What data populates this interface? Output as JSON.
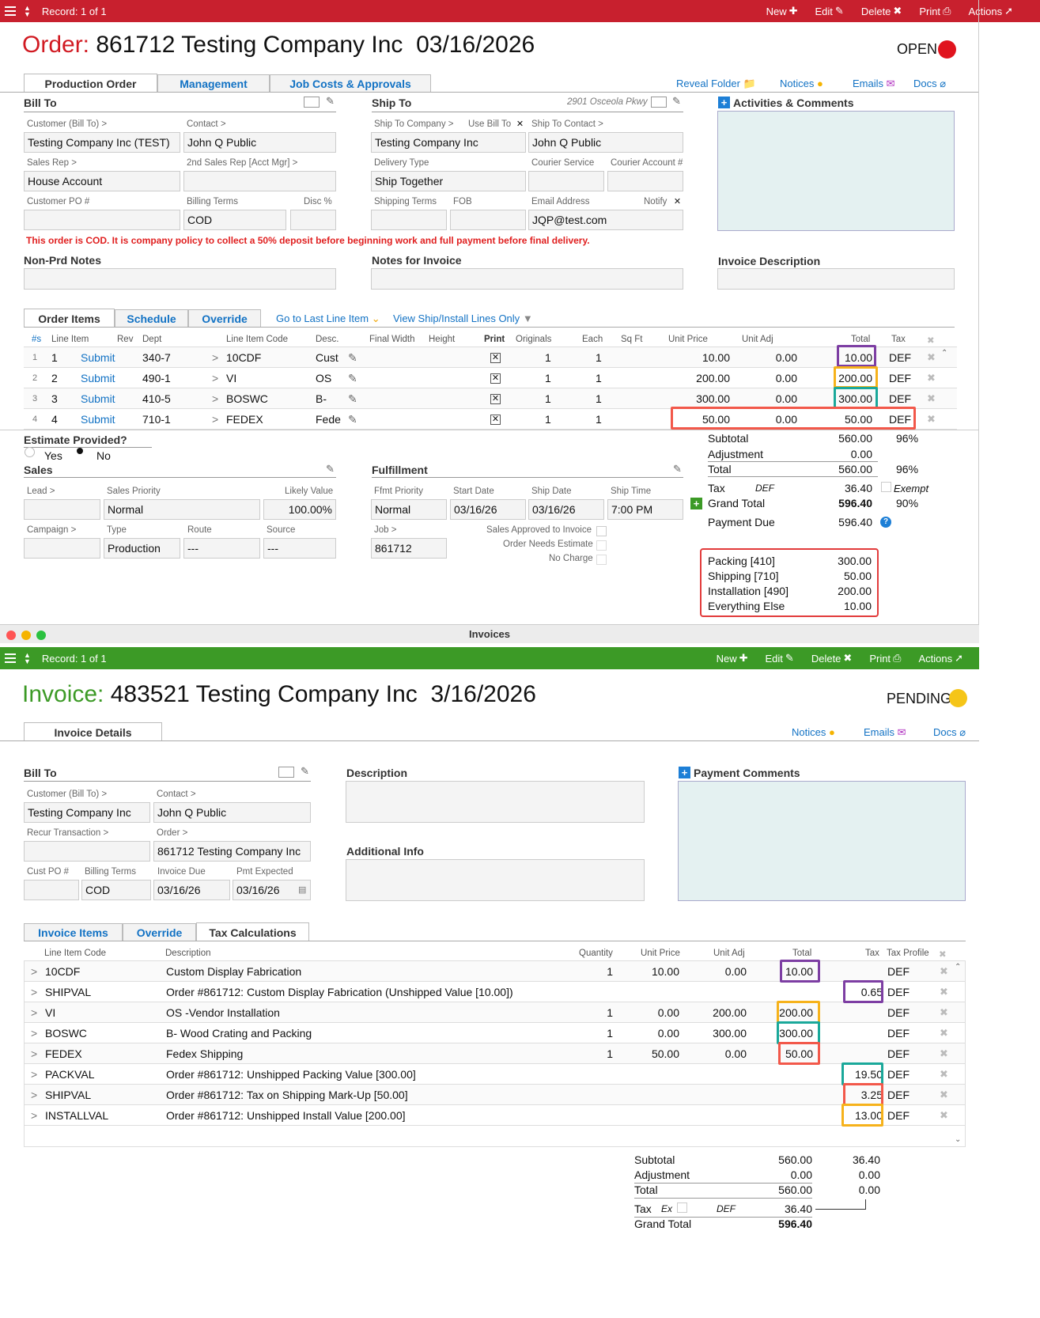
{
  "order_bar": {
    "record": "Record: 1 of 1",
    "new": "New",
    "edit": "Edit",
    "delete": "Delete",
    "print": "Print",
    "actions": "Actions"
  },
  "order": {
    "label": "Order:",
    "title": "861712 Testing Company Inc  03/16/2026",
    "status": "OPEN",
    "status_color": "#e0141e"
  },
  "order_tabs": [
    "Production Order",
    "Management",
    "Job Costs & Approvals"
  ],
  "order_links": {
    "reveal": "Reveal Folder",
    "notices": "Notices",
    "emails": "Emails",
    "docs": "Docs"
  },
  "bill_to": {
    "heading": "Bill To",
    "customer_lbl": "Customer (Bill To) >",
    "customer": "Testing Company Inc  (TEST)",
    "contact_lbl": "Contact >",
    "contact": "John Q Public",
    "sales_rep_lbl": "Sales Rep >",
    "sales_rep": "House Account",
    "sales_rep2_lbl": "2nd Sales Rep [Acct Mgr] >",
    "sales_rep2": "",
    "po_lbl": "Customer PO #",
    "po": "",
    "terms_lbl": "Billing Terms",
    "terms": "COD",
    "disc_lbl": "Disc %",
    "disc": ""
  },
  "ship_to": {
    "heading": "Ship To",
    "address": "2901 Osceola Pkwy",
    "company_lbl": "Ship To Company >",
    "use_bill_lbl": "Use Bill To",
    "company": "Testing Company Inc",
    "contact_lbl": "Ship To Contact >",
    "contact": "John Q Public",
    "delivery_lbl": "Delivery Type",
    "delivery": "Ship Together",
    "courier_lbl": "Courier Service",
    "courier_acct_lbl": "Courier Account #",
    "terms_lbl": "Shipping Terms",
    "fob_lbl": "FOB",
    "email_lbl": "Email Address",
    "notify_lbl": "Notify",
    "email": "JQP@test.com"
  },
  "activities": {
    "heading": "Activities & Comments"
  },
  "cod_notice": "This order is COD. It is company policy to collect a 50% deposit before beginning work and full payment before final delivery.",
  "notes": {
    "nonprd": "Non-Prd Notes",
    "invoice": "Notes for Invoice",
    "description": "Invoice Description"
  },
  "items_tabs": [
    "Order Items",
    "Schedule",
    "Override"
  ],
  "items_links": {
    "last": "Go to Last Line Item",
    "ship": "View Ship/Install Lines Only"
  },
  "items_headers": [
    "#s",
    "Line Item",
    "Rev",
    "Dept",
    "Line Item Code",
    "Desc.",
    "Final Width",
    "Height",
    "Print",
    "Originals",
    "Each",
    "Sq Ft",
    "Unit Price",
    "Unit Adj",
    "Total",
    "Tax"
  ],
  "items": [
    {
      "n": "1",
      "line": "1",
      "rev": "Submit",
      "dept": "340-7",
      "code": "10CDF",
      "desc": "Cust",
      "orig": "1",
      "each": "1",
      "price": "10.00",
      "adj": "0.00",
      "total": "10.00",
      "tax": "DEF"
    },
    {
      "n": "2",
      "line": "2",
      "rev": "Submit",
      "dept": "490-1",
      "code": "VI",
      "desc": "OS",
      "orig": "1",
      "each": "1",
      "price": "200.00",
      "adj": "0.00",
      "total": "200.00",
      "tax": "DEF"
    },
    {
      "n": "3",
      "line": "3",
      "rev": "Submit",
      "dept": "410-5",
      "code": "BOSWC",
      "desc": "B-",
      "orig": "1",
      "each": "1",
      "price": "300.00",
      "adj": "0.00",
      "total": "300.00",
      "tax": "DEF"
    },
    {
      "n": "4",
      "line": "4",
      "rev": "Submit",
      "dept": "710-1",
      "code": "FEDEX",
      "desc": "Fede",
      "orig": "1",
      "each": "1",
      "price": "50.00",
      "adj": "0.00",
      "total": "50.00",
      "tax": "DEF"
    }
  ],
  "estimate": {
    "heading": "Estimate Provided?",
    "yes": "Yes",
    "no": "No",
    "selected": "No"
  },
  "sales": {
    "heading": "Sales",
    "lead_lbl": "Lead >",
    "priority_lbl": "Sales Priority",
    "priority": "Normal",
    "likely_lbl": "Likely Value",
    "likely": "100.00%",
    "campaign_lbl": "Campaign >",
    "type_lbl": "Type",
    "type": "Production",
    "route_lbl": "Route",
    "route": "---",
    "source_lbl": "Source",
    "source": "---"
  },
  "fulfillment": {
    "heading": "Fulfillment",
    "priority_lbl": "Ffmt Priority",
    "priority": "Normal",
    "start_lbl": "Start Date",
    "start": "03/16/26",
    "ship_lbl": "Ship Date",
    "ship": "03/16/26",
    "time_lbl": "Ship Time",
    "time": "7:00 PM",
    "job_lbl": "Job >",
    "job": "861712",
    "approved": "Sales Approved to Invoice",
    "needs": "Order Needs Estimate",
    "nocharge": "No Charge"
  },
  "order_totals": {
    "subtotal_lbl": "Subtotal",
    "subtotal": "560.00",
    "subtotal_pct": "96%",
    "adj_lbl": "Adjustment",
    "adj": "0.00",
    "total_lbl": "Total",
    "total": "560.00",
    "total_pct": "96%",
    "tax_lbl": "Tax",
    "tax_code": "DEF",
    "tax": "36.40",
    "exempt": "Exempt",
    "grand_lbl": "Grand Total",
    "grand": "596.40",
    "grand_pct": "90%",
    "due_lbl": "Payment Due",
    "due": "596.40"
  },
  "breakdown": [
    {
      "k": "Packing [410]",
      "v": "300.00"
    },
    {
      "k": "Shipping [710]",
      "v": "50.00"
    },
    {
      "k": "Installation [490]",
      "v": "200.00"
    },
    {
      "k": "Everything Else",
      "v": "10.00"
    }
  ],
  "window_title": "Invoices",
  "inv_bar": {
    "record": "Record: 1 of 1",
    "new": "New",
    "edit": "Edit",
    "delete": "Delete",
    "print": "Print",
    "actions": "Actions"
  },
  "invoice": {
    "label": "Invoice:",
    "title": "483521 Testing Company Inc  3/16/2026",
    "status": "PENDING",
    "status_color": "#f5c518"
  },
  "inv_tabs": [
    "Invoice Details"
  ],
  "inv_links": {
    "notices": "Notices",
    "emails": "Emails",
    "docs": "Docs"
  },
  "inv_bill": {
    "heading": "Bill To",
    "customer_lbl": "Customer (Bill To) >",
    "customer": "Testing Company Inc",
    "contact_lbl": "Contact >",
    "contact": "John Q Public",
    "recur_lbl": "Recur Transaction >",
    "order_lbl": "Order >",
    "order": "861712 Testing Company Inc",
    "po_lbl": "Cust PO #",
    "terms_lbl": "Billing Terms",
    "terms": "COD",
    "due_lbl": "Invoice Due",
    "due": "03/16/26",
    "pmt_lbl": "Pmt Expected",
    "pmt": "03/16/26"
  },
  "inv_desc": {
    "description": "Description",
    "additional": "Additional Info",
    "payment_comments": "Payment Comments"
  },
  "inv_item_tabs": [
    "Invoice Items",
    "Override",
    "Tax Calculations"
  ],
  "inv_headers": [
    "Line Item Code",
    "Description",
    "Quantity",
    "Unit Price",
    "Unit Adj",
    "Total",
    "Tax",
    "Tax Profile"
  ],
  "inv_items": [
    {
      "code": "10CDF",
      "desc": "Custom Display Fabrication",
      "qty": "1",
      "price": "10.00",
      "adj": "0.00",
      "total": "10.00",
      "tax": "",
      "prof": "DEF"
    },
    {
      "code": "SHIPVAL",
      "desc": "Order #861712: Custom Display Fabrication (Unshipped Value [10.00])",
      "qty": "",
      "price": "",
      "adj": "",
      "total": "",
      "tax": "0.65",
      "prof": "DEF"
    },
    {
      "code": "VI",
      "desc": "OS -Vendor Installation",
      "qty": "1",
      "price": "0.00",
      "adj": "200.00",
      "total": "200.00",
      "tax": "",
      "prof": "DEF"
    },
    {
      "code": "BOSWC",
      "desc": "B- Wood Crating and Packing",
      "qty": "1",
      "price": "0.00",
      "adj": "300.00",
      "total": "300.00",
      "tax": "",
      "prof": "DEF"
    },
    {
      "code": "FEDEX",
      "desc": "Fedex Shipping",
      "qty": "1",
      "price": "50.00",
      "adj": "0.00",
      "total": "50.00",
      "tax": "",
      "prof": "DEF"
    },
    {
      "code": "PACKVAL",
      "desc": "Order #861712: Unshipped Packing Value [300.00]",
      "qty": "",
      "price": "",
      "adj": "",
      "total": "",
      "tax": "19.50",
      "prof": "DEF"
    },
    {
      "code": "SHIPVAL",
      "desc": "Order #861712: Tax on Shipping Mark-Up [50.00]",
      "qty": "",
      "price": "",
      "adj": "",
      "total": "",
      "tax": "3.25",
      "prof": "DEF"
    },
    {
      "code": "INSTALLVAL",
      "desc": "Order #861712: Unshipped Install Value [200.00]",
      "qty": "",
      "price": "",
      "adj": "",
      "total": "",
      "tax": "13.00",
      "prof": "DEF"
    }
  ],
  "inv_totals": {
    "subtotal_lbl": "Subtotal",
    "subtotal": "560.00",
    "subtotal_tax": "36.40",
    "adj_lbl": "Adjustment",
    "adj": "0.00",
    "adj_tax": "0.00",
    "total_lbl": "Total",
    "total": "560.00",
    "total_tax": "0.00",
    "tax_lbl": "Tax",
    "ex": "Ex",
    "tax_code": "DEF",
    "tax": "36.40",
    "grand_lbl": "Grand Total",
    "grand": "596.40"
  }
}
